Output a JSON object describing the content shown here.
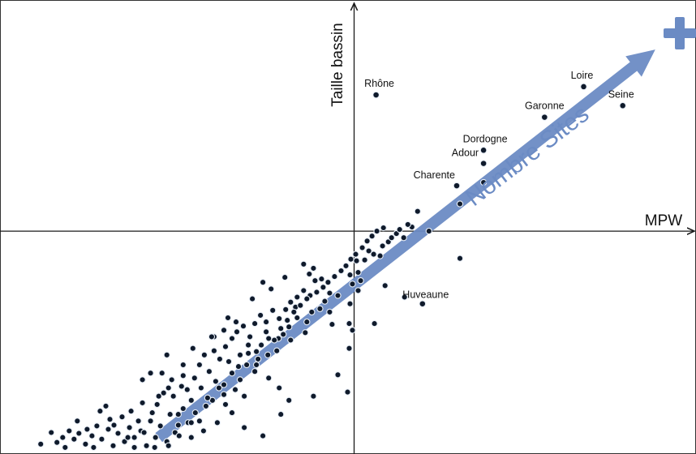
{
  "chart_data": {
    "type": "scatter",
    "title": "",
    "xlabel": "MPW",
    "ylabel": "Taille bassin",
    "xlim": [
      -4.35,
      4.2
    ],
    "ylim": [
      -2.7,
      2.8
    ],
    "grid": false,
    "legend": "none",
    "trend_arrow": {
      "label": "Nombre Sites",
      "color": "#6b8bc4",
      "from": [
        -2.4,
        -2.5
      ],
      "to": [
        3.7,
        2.2
      ]
    },
    "plus_sign": {
      "color": "#6b8bc4"
    },
    "labeled_points": [
      {
        "name": "Rhône",
        "x": 0.27,
        "y": 1.65
      },
      {
        "name": "Loire",
        "x": 2.82,
        "y": 1.75
      },
      {
        "name": "Garonne",
        "x": 2.34,
        "y": 1.38
      },
      {
        "name": "Seine",
        "x": 3.3,
        "y": 1.52
      },
      {
        "name": "Dordogne",
        "x": 1.59,
        "y": 0.98
      },
      {
        "name": "Adour",
        "x": 1.59,
        "y": 0.82
      },
      {
        "name": "Charente",
        "x": 1.26,
        "y": 0.55
      },
      {
        "name": "Huveaune",
        "x": 0.84,
        "y": -0.88
      }
    ],
    "points": [
      [
        0.78,
        0.24
      ],
      [
        1.59,
        0.59
      ],
      [
        1.3,
        0.33
      ],
      [
        0.92,
        0.0
      ],
      [
        0.52,
        -0.03
      ],
      [
        0.61,
        -0.08
      ],
      [
        0.71,
        0.05
      ],
      [
        0.42,
        -0.13
      ],
      [
        0.35,
        -0.18
      ],
      [
        0.24,
        -0.28
      ],
      [
        0.18,
        -0.24
      ],
      [
        0.32,
        -0.3
      ],
      [
        0.13,
        -0.35
      ],
      [
        0.03,
        -0.36
      ],
      [
        0.05,
        -0.5
      ],
      [
        -0.05,
        -0.53
      ],
      [
        0.08,
        -0.6
      ],
      [
        -0.02,
        -0.64
      ],
      [
        -0.2,
        -0.78
      ],
      [
        -0.3,
        -0.75
      ],
      [
        -0.36,
        -0.85
      ],
      [
        -0.42,
        -0.94
      ],
      [
        -0.3,
        -0.98
      ],
      [
        0.38,
        -0.66
      ],
      [
        0.62,
        -0.8
      ],
      [
        0.05,
        -0.72
      ],
      [
        -0.05,
        -0.88
      ],
      [
        -0.06,
        -1.12
      ],
      [
        0.25,
        -1.12
      ],
      [
        1.3,
        -0.33
      ],
      [
        -0.27,
        -1.13
      ],
      [
        -0.52,
        -0.98
      ],
      [
        -0.58,
        -1.1
      ],
      [
        -0.6,
        -1.23
      ],
      [
        -0.7,
        -1.05
      ],
      [
        -0.72,
        -0.92
      ],
      [
        -0.8,
        -1.16
      ],
      [
        -0.87,
        -1.25
      ],
      [
        -0.78,
        -1.32
      ],
      [
        -0.93,
        -1.3
      ],
      [
        -0.95,
        -1.45
      ],
      [
        -1.05,
        -1.3
      ],
      [
        -1.06,
        -1.5
      ],
      [
        -1.14,
        -1.38
      ],
      [
        -1.18,
        -1.55
      ],
      [
        -1.22,
        -1.7
      ],
      [
        -1.3,
        -1.48
      ],
      [
        -1.32,
        -1.62
      ],
      [
        -1.42,
        -1.64
      ],
      [
        -1.4,
        -1.8
      ],
      [
        -1.5,
        -1.72
      ],
      [
        -1.54,
        -1.58
      ],
      [
        -1.6,
        -1.86
      ],
      [
        -1.6,
        -1.98
      ],
      [
        -1.7,
        -1.82
      ],
      [
        -1.74,
        -2.05
      ],
      [
        -1.78,
        -1.7
      ],
      [
        -1.82,
        -2.12
      ],
      [
        -1.88,
        -1.9
      ],
      [
        -1.95,
        -2.2
      ],
      [
        -2.0,
        -2.05
      ],
      [
        -2.04,
        -2.32
      ],
      [
        -2.1,
        -2.15
      ],
      [
        -2.16,
        -2.35
      ],
      [
        -2.2,
        -2.44
      ],
      [
        -2.26,
        -2.22
      ],
      [
        -2.3,
        -2.55
      ],
      [
        -2.38,
        -2.36
      ],
      [
        -2.44,
        -2.5
      ],
      [
        -2.5,
        -2.3
      ],
      [
        -2.55,
        -2.6
      ],
      [
        -2.62,
        -2.42
      ],
      [
        -2.7,
        -2.5
      ],
      [
        -2.76,
        -2.38
      ],
      [
        -2.82,
        -2.55
      ],
      [
        -2.9,
        -2.45
      ],
      [
        -2.96,
        -2.6
      ],
      [
        -3.02,
        -2.4
      ],
      [
        -3.1,
        -2.52
      ],
      [
        -3.16,
        -2.36
      ],
      [
        -3.22,
        -2.48
      ],
      [
        -3.3,
        -2.58
      ],
      [
        -3.38,
        -2.45
      ],
      [
        -3.44,
        -2.52
      ],
      [
        -3.5,
        -2.42
      ],
      [
        -3.58,
        -2.5
      ],
      [
        -3.65,
        -2.56
      ],
      [
        -3.72,
        -2.44
      ],
      [
        -3.85,
        -2.58
      ],
      [
        -3.12,
        -2.18
      ],
      [
        -3.0,
        -2.28
      ],
      [
        -2.85,
        -2.25
      ],
      [
        -2.74,
        -2.18
      ],
      [
        -2.6,
        -2.08
      ],
      [
        -2.65,
        -2.3
      ],
      [
        -2.42,
        -2.1
      ],
      [
        -2.34,
        -1.96
      ],
      [
        -2.22,
        -2.0
      ],
      [
        -2.12,
        -1.88
      ],
      [
        -2.24,
        -1.8
      ],
      [
        -2.36,
        -1.72
      ],
      [
        -2.05,
        -1.92
      ],
      [
        -1.96,
        -1.78
      ],
      [
        -1.9,
        -1.62
      ],
      [
        -1.84,
        -1.5
      ],
      [
        -1.72,
        -1.45
      ],
      [
        -1.65,
        -1.55
      ],
      [
        -1.58,
        -1.4
      ],
      [
        -1.5,
        -1.3
      ],
      [
        -1.44,
        -1.22
      ],
      [
        -1.36,
        -1.15
      ],
      [
        -1.28,
        -1.28
      ],
      [
        -1.22,
        -1.12
      ],
      [
        -1.15,
        -1.02
      ],
      [
        -1.08,
        -1.1
      ],
      [
        -1.0,
        -0.96
      ],
      [
        -0.92,
        -1.06
      ],
      [
        -0.84,
        -0.95
      ],
      [
        -0.78,
        -0.86
      ],
      [
        -0.7,
        -0.8
      ],
      [
        -0.62,
        -0.72
      ],
      [
        -0.54,
        -0.78
      ],
      [
        -0.48,
        -0.6
      ],
      [
        -0.4,
        -0.58
      ],
      [
        -0.55,
        -0.52
      ],
      [
        -1.02,
        -0.7
      ],
      [
        -1.25,
        -0.82
      ],
      [
        -1.6,
        -1.2
      ],
      [
        -1.72,
        -1.28
      ],
      [
        -2.1,
        -1.62
      ],
      [
        -2.3,
        -1.5
      ],
      [
        -2.5,
        -1.72
      ],
      [
        -2.6,
        -1.8
      ],
      [
        -2.1,
        -1.75
      ],
      [
        -1.98,
        -1.42
      ],
      [
        -1.75,
        -1.28
      ],
      [
        -1.55,
        -1.05
      ],
      [
        -1.45,
        -1.1
      ],
      [
        -1.12,
        -0.62
      ],
      [
        -0.85,
        -0.56
      ],
      [
        -0.62,
        -0.4
      ],
      [
        -0.5,
        -0.45
      ],
      [
        -1.2,
        -1.62
      ],
      [
        -1.05,
        -1.78
      ],
      [
        -0.92,
        -1.9
      ],
      [
        -0.8,
        -2.05
      ],
      [
        -0.9,
        -2.22
      ],
      [
        -1.35,
        -2.0
      ],
      [
        -1.5,
        -2.2
      ],
      [
        -1.68,
        -2.32
      ],
      [
        -1.35,
        -2.38
      ],
      [
        -1.12,
        -2.48
      ],
      [
        -2.0,
        -2.5
      ],
      [
        -1.85,
        -2.42
      ],
      [
        -0.5,
        -2.0
      ],
      [
        -0.2,
        -1.74
      ],
      [
        -0.06,
        -1.42
      ],
      [
        -0.08,
        -1.95
      ],
      [
        -0.02,
        -1.2
      ],
      [
        -3.4,
        -2.3
      ],
      [
        -3.28,
        -2.4
      ],
      [
        -3.05,
        -2.12
      ],
      [
        -2.95,
        -2.35
      ],
      [
        -2.78,
        -2.5
      ],
      [
        -2.58,
        -2.44
      ],
      [
        -2.48,
        -2.2
      ],
      [
        -2.4,
        -2.0
      ],
      [
        -2.28,
        -1.9
      ],
      [
        -2.16,
        -2.22
      ],
      [
        -2.0,
        -2.32
      ],
      [
        -1.9,
        -2.3
      ],
      [
        -1.8,
        -2.02
      ],
      [
        -1.66,
        -1.9
      ],
      [
        -1.58,
        -2.1
      ],
      [
        -1.46,
        -1.92
      ],
      [
        -1.4,
        -1.5
      ],
      [
        -1.3,
        -1.38
      ],
      [
        -1.2,
        -1.46
      ],
      [
        -1.08,
        -1.22
      ],
      [
        -0.98,
        -1.32
      ],
      [
        -0.9,
        -1.18
      ],
      [
        -0.82,
        -1.08
      ],
      [
        -0.74,
        -0.98
      ],
      [
        -0.66,
        -0.9
      ],
      [
        -0.58,
        -0.82
      ],
      [
        -0.46,
        -0.74
      ],
      [
        -0.38,
        -0.68
      ],
      [
        -0.32,
        -0.62
      ],
      [
        -0.24,
        -0.55
      ],
      [
        -0.16,
        -0.48
      ],
      [
        -0.1,
        -0.42
      ],
      [
        -0.04,
        -0.34
      ],
      [
        0.02,
        -0.28
      ],
      [
        0.1,
        -0.2
      ],
      [
        0.16,
        -0.12
      ],
      [
        0.22,
        -0.06
      ],
      [
        0.28,
        0.0
      ],
      [
        0.36,
        0.04
      ],
      [
        0.46,
        -0.08
      ],
      [
        0.56,
        0.02
      ],
      [
        0.66,
        0.08
      ],
      [
        -2.15,
        -2.48
      ],
      [
        -2.28,
        -2.6
      ],
      [
        -2.45,
        -2.62
      ],
      [
        -2.7,
        -2.62
      ],
      [
        -3.2,
        -2.62
      ],
      [
        -3.55,
        -2.62
      ]
    ]
  }
}
